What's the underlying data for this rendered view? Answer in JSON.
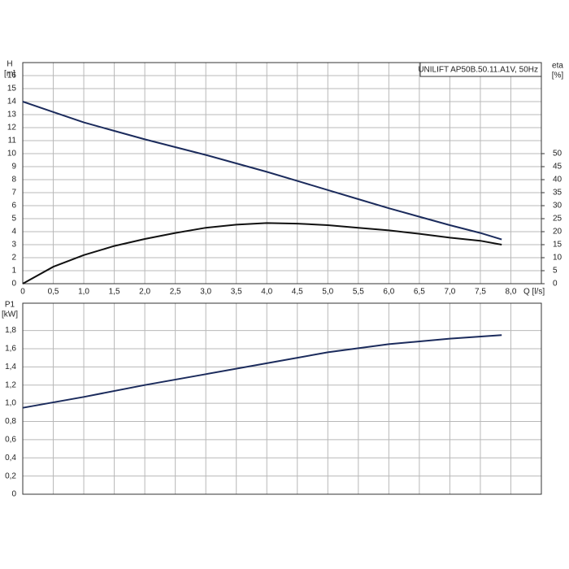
{
  "chart_data": [
    {
      "type": "line",
      "title": "UNILIFT AP50B.50.11.A1V, 50Hz",
      "y_label": "H",
      "y_unit": "[m]",
      "y2_label": "eta",
      "y2_unit": "[%]",
      "x_label": "Q [l/s]",
      "x": [
        0,
        0.5,
        1.0,
        1.5,
        2.0,
        2.5,
        3.0,
        3.5,
        4.0,
        4.5,
        5.0,
        5.5,
        6.0,
        6.5,
        7.0,
        7.5,
        7.85
      ],
      "series": [
        {
          "color": "#1b2b5c",
          "axis": "y",
          "values": [
            14,
            13.2,
            12.4,
            11.75,
            11.1,
            10.5,
            9.9,
            9.25,
            8.6,
            7.9,
            7.2,
            6.5,
            5.8,
            5.15,
            4.5,
            3.9,
            3.4
          ]
        },
        {
          "color": "#111111",
          "axis": "y2",
          "values": [
            0,
            6.5,
            11,
            14.5,
            17.2,
            19.5,
            21.5,
            22.7,
            23.3,
            23.1,
            22.5,
            21.5,
            20.5,
            19.2,
            17.7,
            16.5,
            15
          ]
        }
      ],
      "xlim": [
        0,
        8.5
      ],
      "xticks": [
        0,
        {
          "value": 0.5,
          "label": "0,5"
        },
        {
          "value": 1,
          "label": "1,0"
        },
        {
          "value": 1.5,
          "label": "1,5"
        },
        {
          "value": 2,
          "label": "2,0"
        },
        {
          "value": 2.5,
          "label": "2,5"
        },
        {
          "value": 3,
          "label": "3,0"
        },
        {
          "value": 3.5,
          "label": "3,5"
        },
        {
          "value": 4,
          "label": "4,0"
        },
        {
          "value": 4.5,
          "label": "4,5"
        },
        {
          "value": 5,
          "label": "5,0"
        },
        {
          "value": 5.5,
          "label": "5,5"
        },
        {
          "value": 6,
          "label": "6,0"
        },
        {
          "value": 6.5,
          "label": "6,5"
        },
        {
          "value": 7,
          "label": "7,0"
        },
        {
          "value": 7.5,
          "label": "7,5"
        },
        {
          "value": 8,
          "label": "8,0"
        }
      ],
      "ylim": [
        0,
        17
      ],
      "yticks": [
        0,
        1,
        2,
        3,
        4,
        5,
        6,
        7,
        8,
        9,
        10,
        11,
        12,
        13,
        14,
        15,
        16
      ],
      "y2lim": [
        0,
        85
      ],
      "y2ticks": [
        0,
        5,
        10,
        15,
        20,
        25,
        30,
        35,
        40,
        45,
        50
      ],
      "grid": true
    },
    {
      "type": "line",
      "y_label": "P1",
      "y_unit": "[kW]",
      "x": [
        0,
        1,
        2,
        3,
        4,
        5,
        6,
        7,
        7.85
      ],
      "series": [
        {
          "color": "#1b2b5c",
          "values": [
            0.95,
            1.07,
            1.2,
            1.32,
            1.44,
            1.56,
            1.65,
            1.71,
            1.75
          ]
        }
      ],
      "xlim": [
        0,
        8.5
      ],
      "ylim": [
        0,
        2.1
      ],
      "yticks": [
        0,
        {
          "value": 0.2,
          "label": "0,2"
        },
        {
          "value": 0.4,
          "label": "0,4"
        },
        {
          "value": 0.6,
          "label": "0,6"
        },
        {
          "value": 0.8,
          "label": "0,8"
        },
        {
          "value": 1,
          "label": "1,0"
        },
        {
          "value": 1.2,
          "label": "1,2"
        },
        {
          "value": 1.4,
          "label": "1,4"
        },
        {
          "value": 1.6,
          "label": "1,6"
        },
        {
          "value": 1.8,
          "label": "1,8"
        }
      ],
      "grid": true
    }
  ]
}
